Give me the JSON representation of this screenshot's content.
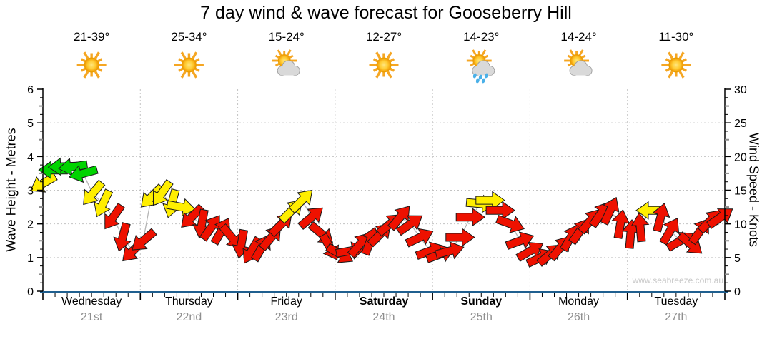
{
  "title": "7 day wind & wave forecast for Gooseberry Hill",
  "watermark": "www.seabreeze.com.au",
  "colors": {
    "arrow_green": "#00d400",
    "arrow_yellow": "#ffee00",
    "arrow_red": "#ee1100",
    "arrow_outline": "#1a1a1a",
    "connector_gray": "#b5b5b5",
    "axis_blue": "#1f5f8f",
    "grid_gray": "#c3c3c3",
    "date_gray": "#8f8f8f",
    "watermark_gray": "#c9c9c9",
    "sun_core": "#ffc933",
    "sun_ray": "#f5a623",
    "cloud_gray": "#d9d9d9",
    "rain_blue": "#4ab0e8"
  },
  "chart_data": {
    "type": "wind-forecast-arrow-timeseries",
    "title": "7 day wind & wave forecast for Gooseberry Hill",
    "left_axis": {
      "label": "Wave Height - Metres",
      "min": 0,
      "max": 6,
      "ticks": [
        0,
        1,
        2,
        3,
        4,
        5,
        6
      ]
    },
    "right_axis": {
      "label": "Wind Speed - Knots",
      "min": 0,
      "max": 30,
      "ticks": [
        0,
        5,
        10,
        15,
        20,
        25,
        30
      ]
    },
    "grid": "dotted, horizontal every 5 knots, vertical at day boundaries",
    "days": [
      {
        "name": "Wednesday",
        "date": "21st",
        "temp": "21-39°",
        "icon": "sunny",
        "bold": false
      },
      {
        "name": "Thursday",
        "date": "22nd",
        "temp": "25-34°",
        "icon": "sunny",
        "bold": false
      },
      {
        "name": "Friday",
        "date": "23rd",
        "temp": "15-24°",
        "icon": "partly-cloudy",
        "bold": false
      },
      {
        "name": "Saturday",
        "date": "24th",
        "temp": "12-27°",
        "icon": "sunny",
        "bold": true
      },
      {
        "name": "Sunday",
        "date": "25th",
        "temp": "14-23°",
        "icon": "showers",
        "bold": true
      },
      {
        "name": "Monday",
        "date": "26th",
        "temp": "14-24°",
        "icon": "partly-cloudy",
        "bold": false
      },
      {
        "name": "Tuesday",
        "date": "27th",
        "temp": "11-30°",
        "icon": "sunny",
        "bold": false
      }
    ],
    "point_format": [
      "t_fraction_of_week",
      "wind_knots",
      "arrow_direction_deg_0_up",
      "color_code_g_y_r"
    ],
    "points": [
      [
        0.0,
        16,
        240,
        "y"
      ],
      [
        0.015,
        18,
        270,
        "g"
      ],
      [
        0.029,
        18.5,
        268,
        "g"
      ],
      [
        0.044,
        18.5,
        262,
        "g"
      ],
      [
        0.059,
        17.5,
        255,
        "g"
      ],
      [
        0.073,
        14.5,
        220,
        "y"
      ],
      [
        0.088,
        13,
        205,
        "y"
      ],
      [
        0.103,
        11,
        215,
        "r"
      ],
      [
        0.117,
        8,
        195,
        "r"
      ],
      [
        0.132,
        6,
        225,
        "r"
      ],
      [
        0.147,
        7.5,
        230,
        "r"
      ],
      [
        0.159,
        14,
        225,
        "y"
      ],
      [
        0.174,
        14.5,
        215,
        "y"
      ],
      [
        0.189,
        13,
        195,
        "y"
      ],
      [
        0.203,
        12.5,
        100,
        "y"
      ],
      [
        0.218,
        11,
        225,
        "r"
      ],
      [
        0.233,
        10,
        190,
        "r"
      ],
      [
        0.247,
        9.5,
        35,
        "r"
      ],
      [
        0.262,
        9,
        30,
        "r"
      ],
      [
        0.277,
        8,
        140,
        "r"
      ],
      [
        0.291,
        7,
        190,
        "r"
      ],
      [
        0.306,
        6,
        210,
        "r"
      ],
      [
        0.321,
        6.5,
        30,
        "r"
      ],
      [
        0.335,
        8,
        40,
        "r"
      ],
      [
        0.35,
        10,
        45,
        "r"
      ],
      [
        0.365,
        12,
        45,
        "y"
      ],
      [
        0.38,
        13.5,
        45,
        "y"
      ],
      [
        0.394,
        11,
        50,
        "r"
      ],
      [
        0.409,
        8.5,
        130,
        "r"
      ],
      [
        0.421,
        6.5,
        150,
        "r"
      ],
      [
        0.436,
        5.5,
        120,
        "r"
      ],
      [
        0.451,
        6,
        80,
        "r"
      ],
      [
        0.465,
        7,
        40,
        "r"
      ],
      [
        0.48,
        7.5,
        20,
        "r"
      ],
      [
        0.495,
        8.5,
        45,
        "r"
      ],
      [
        0.509,
        10,
        50,
        "r"
      ],
      [
        0.524,
        11,
        40,
        "r"
      ],
      [
        0.539,
        10,
        55,
        "r"
      ],
      [
        0.553,
        8,
        65,
        "r"
      ],
      [
        0.568,
        6,
        70,
        "r"
      ],
      [
        0.583,
        5.5,
        70,
        "r"
      ],
      [
        0.597,
        6,
        75,
        "r"
      ],
      [
        0.612,
        8,
        90,
        "r"
      ],
      [
        0.627,
        11,
        90,
        "r"
      ],
      [
        0.642,
        13,
        95,
        "y"
      ],
      [
        0.656,
        13.5,
        90,
        "y"
      ],
      [
        0.671,
        12,
        90,
        "r"
      ],
      [
        0.686,
        10,
        110,
        "r"
      ],
      [
        0.7,
        7.5,
        70,
        "r"
      ],
      [
        0.715,
        6,
        60,
        "r"
      ],
      [
        0.73,
        5,
        65,
        "r"
      ],
      [
        0.744,
        5.5,
        50,
        "r"
      ],
      [
        0.759,
        6.5,
        40,
        "r"
      ],
      [
        0.774,
        8,
        30,
        "r"
      ],
      [
        0.788,
        9,
        35,
        "r"
      ],
      [
        0.803,
        10.5,
        40,
        "r"
      ],
      [
        0.818,
        11.5,
        35,
        "r"
      ],
      [
        0.832,
        12,
        25,
        "r"
      ],
      [
        0.847,
        10,
        10,
        "r"
      ],
      [
        0.862,
        8.5,
        5,
        "r"
      ],
      [
        0.876,
        9.5,
        355,
        "r"
      ],
      [
        0.891,
        12,
        270,
        "y"
      ],
      [
        0.906,
        11,
        15,
        "r"
      ],
      [
        0.92,
        9,
        30,
        "r"
      ],
      [
        0.935,
        7.5,
        60,
        "r"
      ],
      [
        0.95,
        7,
        130,
        "r"
      ],
      [
        0.964,
        9,
        35,
        "r"
      ],
      [
        0.979,
        10.5,
        45,
        "r"
      ],
      [
        0.994,
        11,
        55,
        "r"
      ]
    ]
  }
}
